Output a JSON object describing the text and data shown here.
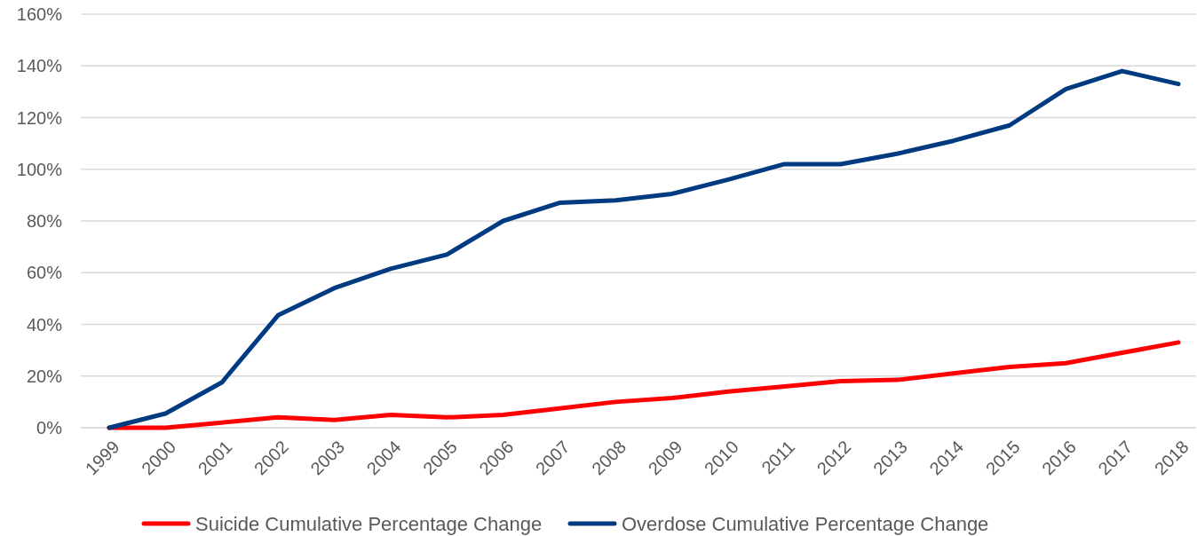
{
  "chart_data": {
    "type": "line",
    "categories": [
      "1999",
      "2000",
      "2001",
      "2002",
      "2003",
      "2004",
      "2005",
      "2006",
      "2007",
      "2008",
      "2009",
      "2010",
      "2011",
      "2012",
      "2013",
      "2014",
      "2015",
      "2016",
      "2017",
      "2018"
    ],
    "series": [
      {
        "name": "Suicide Cumulative Percentage Change",
        "color": "#ff0000",
        "values": [
          0,
          0,
          2,
          4,
          3,
          5,
          4,
          5,
          7.5,
          10,
          11.5,
          14,
          16,
          18,
          18.5,
          21,
          23.5,
          25,
          29,
          33
        ]
      },
      {
        "name": "Overdose Cumulative Percentage Change",
        "color": "#003a80",
        "values": [
          0,
          5.5,
          17.5,
          43.5,
          54,
          61.5,
          67,
          80,
          87,
          88,
          90.5,
          96,
          102,
          102,
          106,
          111,
          117,
          131,
          138,
          133
        ]
      }
    ],
    "ylim": [
      0,
      160
    ],
    "yticks": [
      {
        "value": 0,
        "label": "0%"
      },
      {
        "value": 20,
        "label": "20%"
      },
      {
        "value": 40,
        "label": "40%"
      },
      {
        "value": 60,
        "label": "60%"
      },
      {
        "value": 80,
        "label": "80%"
      },
      {
        "value": 100,
        "label": "100%"
      },
      {
        "value": 120,
        "label": "120%"
      },
      {
        "value": 140,
        "label": "140%"
      },
      {
        "value": 160,
        "label": "160%"
      }
    ],
    "grid": "y",
    "legend": "bottom",
    "marker": "none",
    "line_style": "solid"
  }
}
